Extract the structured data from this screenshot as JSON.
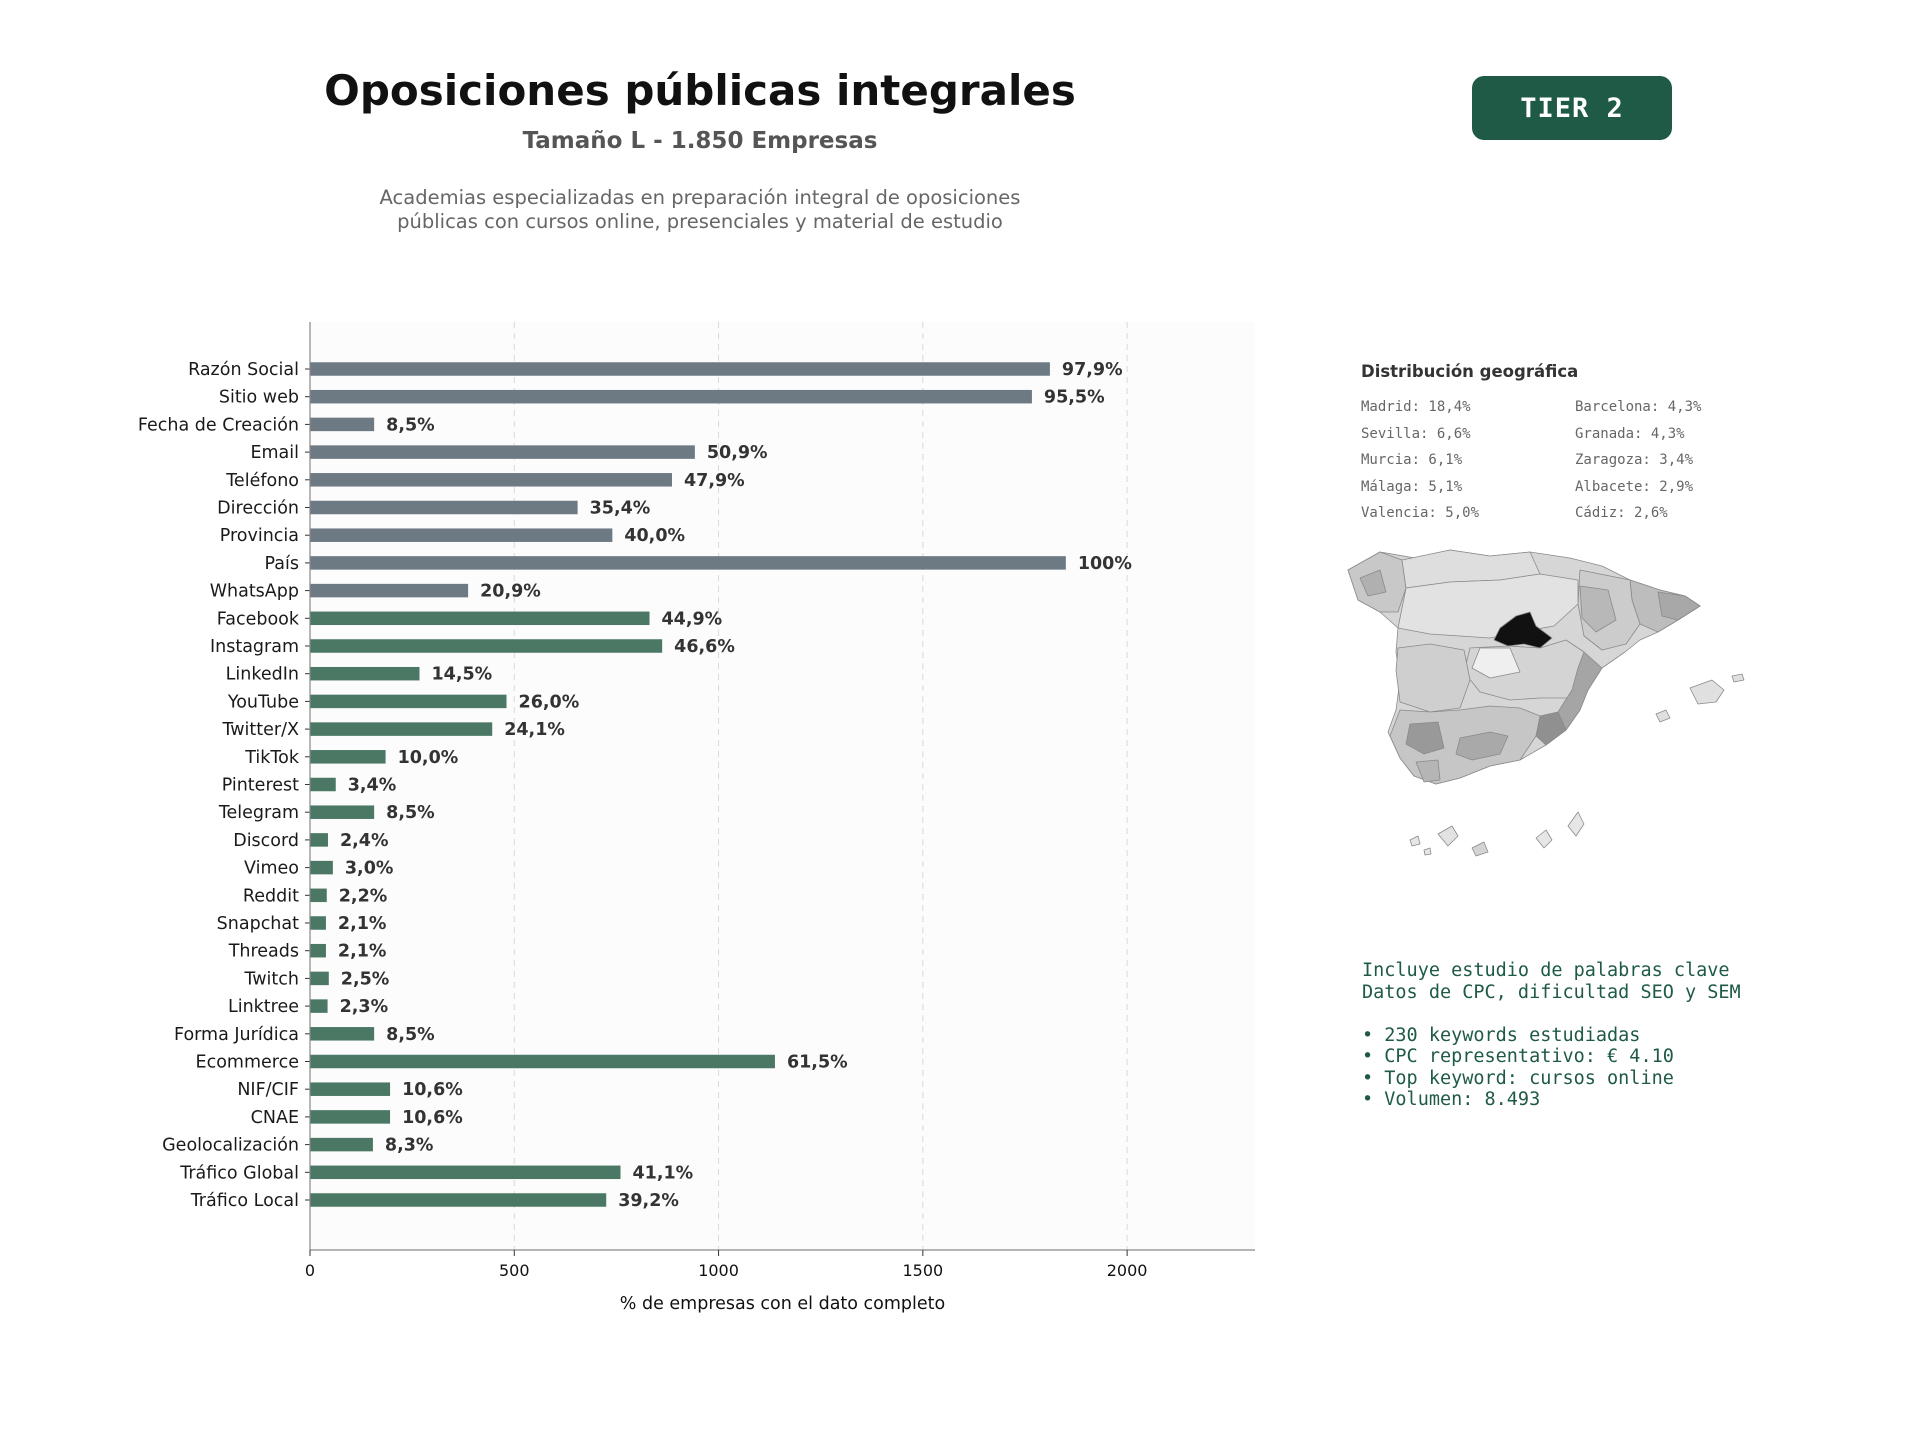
{
  "header": {
    "title": "Oposiciones públicas integrales",
    "subtitle": "Tamaño L - 1.850 Empresas",
    "description": [
      "Academias especializadas en preparación integral de oposiciones",
      "públicas con cursos online, presenciales y material de estudio"
    ],
    "tier_badge": "TIER 2"
  },
  "colors": {
    "gray_bar": "#6e7a83",
    "green_bar": "#4a7864",
    "tier_bg": "#1e5a45",
    "highlight_region": "#111111"
  },
  "chart_data": {
    "type": "bar",
    "orientation": "horizontal",
    "xlabel": "% de empresas con el dato completo",
    "xlim": [
      0,
      2313
    ],
    "xticks": [
      0,
      500,
      1000,
      1500,
      2000
    ],
    "grid": "vertical dashed",
    "categories": [
      "Razón Social",
      "Sitio web",
      "Fecha de Creación",
      "Email",
      "Teléfono",
      "Dirección",
      "Provincia",
      "País",
      "WhatsApp",
      "Facebook",
      "Instagram",
      "LinkedIn",
      "YouTube",
      "Twitter/X",
      "TikTok",
      "Pinterest",
      "Telegram",
      "Discord",
      "Vimeo",
      "Reddit",
      "Snapchat",
      "Threads",
      "Twitch",
      "Linktree",
      "Forma Jurídica",
      "Ecommerce",
      "NIF/CIF",
      "CNAE",
      "Geolocalización",
      "Tráfico Global",
      "Tráfico Local"
    ],
    "values": [
      1811,
      1767,
      157,
      942,
      886,
      655,
      740,
      1850,
      387,
      831,
      862,
      268,
      481,
      446,
      185,
      63,
      157,
      44,
      56,
      41,
      39,
      39,
      46,
      43,
      157,
      1138,
      196,
      196,
      154,
      760,
      725
    ],
    "labels": [
      "97,9%",
      "95,5%",
      "8,5%",
      "50,9%",
      "47,9%",
      "35,4%",
      "40,0%",
      "100%",
      "20,9%",
      "44,9%",
      "46,6%",
      "14,5%",
      "26,0%",
      "24,1%",
      "10,0%",
      "3,4%",
      "8,5%",
      "2,4%",
      "3,0%",
      "2,2%",
      "2,1%",
      "2,1%",
      "2,5%",
      "2,3%",
      "8,5%",
      "61,5%",
      "10,6%",
      "10,6%",
      "8,3%",
      "41,1%",
      "39,2%"
    ],
    "bar_groups": [
      "gray",
      "gray",
      "gray",
      "gray",
      "gray",
      "gray",
      "gray",
      "gray",
      "gray",
      "green",
      "green",
      "green",
      "green",
      "green",
      "green",
      "green",
      "green",
      "green",
      "green",
      "green",
      "green",
      "green",
      "green",
      "green",
      "green",
      "green",
      "green",
      "green",
      "green",
      "green",
      "green"
    ]
  },
  "geo": {
    "title": "Distribución geográfica",
    "items": [
      "Madrid: 18,4%",
      "Barcelona: 4,3%",
      "Sevilla: 6,6%",
      "Granada: 4,3%",
      "Murcia: 6,1%",
      "Zaragoza: 3,4%",
      "Málaga: 5,1%",
      "Albacete: 2,9%",
      "Valencia: 5,0%",
      "Cádiz: 2,6%"
    ]
  },
  "keywords": {
    "lines": [
      "Incluye estudio de palabras clave",
      "Datos de CPC, dificultad SEO y SEM"
    ],
    "bullets": [
      "• 230 keywords estudiadas",
      "• CPC representativo: € 4.10",
      "• Top keyword: cursos online",
      "• Volumen: 8.493"
    ]
  }
}
